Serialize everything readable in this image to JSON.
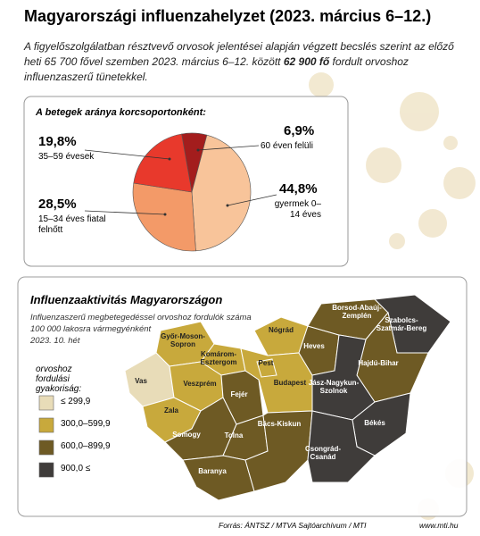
{
  "header": {
    "title": "Magyarországi influenzahelyzet (2023. március 6–12.)",
    "intro": [
      "A figyelőszolgálatban résztvevő orvosok jelentései alapján végzett becslés szerint az előző heti 65 700 fővel szemben 2023. március 6–12. között ",
      "62 900 fő",
      " fordult orvoshoz influenzaszerű tünetekkel."
    ]
  },
  "chart_data": {
    "type": "pie",
    "title": "A betegek aránya korcsoportonként:",
    "categories": [
      "60 éven felüli",
      "gyermek 0–14 éves",
      "15–34 éves fiatal felnőtt",
      "35–59 évesek"
    ],
    "values": [
      6.9,
      44.8,
      28.5,
      19.8
    ],
    "value_labels": [
      "6,9%",
      "44,8%",
      "28,5%",
      "19,8%"
    ],
    "colors": [
      "#a31d1d",
      "#f8c49a",
      "#f39a68",
      "#e8392c"
    ]
  },
  "map": {
    "title": "Influenzaaktivitás Magyarországon",
    "subtitle": [
      "Influenzaszerű megbetegedéssel orvoshoz fordulók száma",
      "100 000 lakosra vármegyénként",
      "2023. 10. hét"
    ],
    "legend_title": "orvoshoz fordulási gyakoriság:",
    "legend": [
      {
        "label": "≤ 299,9",
        "color": "#e8dcb8"
      },
      {
        "label": "300,0–599,9",
        "color": "#c8a93c"
      },
      {
        "label": "600,0–899,9",
        "color": "#6e5a24"
      },
      {
        "label": "900,0 ≤",
        "color": "#3f3c3a"
      }
    ],
    "counties": [
      {
        "name": "Győr-Moson-Sopron",
        "color": "#c8a93c"
      },
      {
        "name": "Komárom-Esztergom",
        "color": "#c8a93c"
      },
      {
        "name": "Vas",
        "color": "#e8dcb8"
      },
      {
        "name": "Veszprém",
        "color": "#c8a93c"
      },
      {
        "name": "Zala",
        "color": "#c8a93c"
      },
      {
        "name": "Fejér",
        "color": "#6e5a24"
      },
      {
        "name": "Somogy",
        "color": "#6e5a24"
      },
      {
        "name": "Tolna",
        "color": "#6e5a24"
      },
      {
        "name": "Baranya",
        "color": "#6e5a24"
      },
      {
        "name": "Nógrád",
        "color": "#c8a93c"
      },
      {
        "name": "Pest",
        "color": "#c8a93c"
      },
      {
        "name": "Budapest",
        "color": "#c8a93c"
      },
      {
        "name": "Bács-Kiskun",
        "color": "#6e5a24"
      },
      {
        "name": "Heves",
        "color": "#6e5a24"
      },
      {
        "name": "Borsod-Abaúj-Zemplén",
        "color": "#6e5a24"
      },
      {
        "name": "Szabolcs-Szatmár-Bereg",
        "color": "#3f3c3a"
      },
      {
        "name": "Hajdú-Bihar",
        "color": "#6e5a24"
      },
      {
        "name": "Jász-Nagykun-Szolnok",
        "color": "#3f3c3a"
      },
      {
        "name": "Békés",
        "color": "#3f3c3a"
      },
      {
        "name": "Csongrád-Csanád",
        "color": "#3f3c3a"
      }
    ]
  },
  "footer": {
    "source": "Forrás: ÁNTSZ / MTVA Sajtóarchívum / MTI",
    "url": "www.mti.hu"
  }
}
